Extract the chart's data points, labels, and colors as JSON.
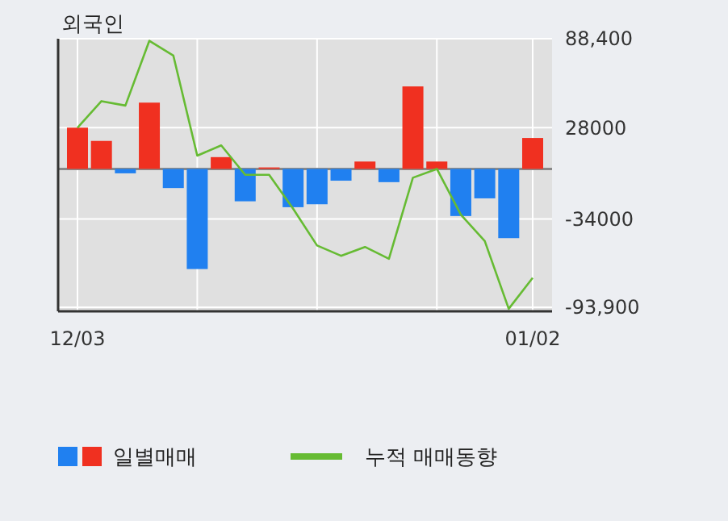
{
  "chart_data": {
    "type": "bar",
    "title": "외국인",
    "categories": [
      "12/03",
      null,
      null,
      null,
      null,
      null,
      null,
      null,
      null,
      null,
      null,
      null,
      null,
      null,
      null,
      null,
      null,
      null,
      null,
      "01/02"
    ],
    "series": [
      {
        "name": "일별매매",
        "colors": [
          "#f03020",
          "#f03020",
          "#2080f0",
          "#f03020",
          "#2080f0",
          "#2080f0",
          "#f03020",
          "#2080f0",
          "#f03020",
          "#2080f0",
          "#2080f0",
          "#2080f0",
          "#f03020",
          "#2080f0",
          "#f03020",
          "#f03020",
          "#2080f0",
          "#2080f0",
          "#2080f0",
          "#f03020"
        ],
        "values": [
          28000,
          19000,
          -3000,
          45000,
          -13000,
          -68000,
          8000,
          -22000,
          1000,
          -26000,
          -24000,
          -8000,
          5000,
          -9000,
          56000,
          5000,
          -32000,
          -20000,
          -47000,
          21000
        ]
      },
      {
        "type": "line",
        "name": "누적 매매동향",
        "color": "#66bb33",
        "values": [
          28000,
          46000,
          43000,
          87000,
          77000,
          9000,
          16000,
          -4000,
          -4000,
          -27000,
          -52000,
          -59000,
          -53000,
          -61000,
          -6000,
          0,
          -31000,
          -49000,
          -95000,
          -74000
        ]
      }
    ],
    "ylim": [
      -96700,
      88400
    ],
    "yticks": [
      {
        "value": 88400,
        "label": "88,400"
      },
      28000,
      -34000,
      {
        "value": -93900,
        "label": "-93,900"
      }
    ],
    "grid": true,
    "legend": "bottom left"
  }
}
